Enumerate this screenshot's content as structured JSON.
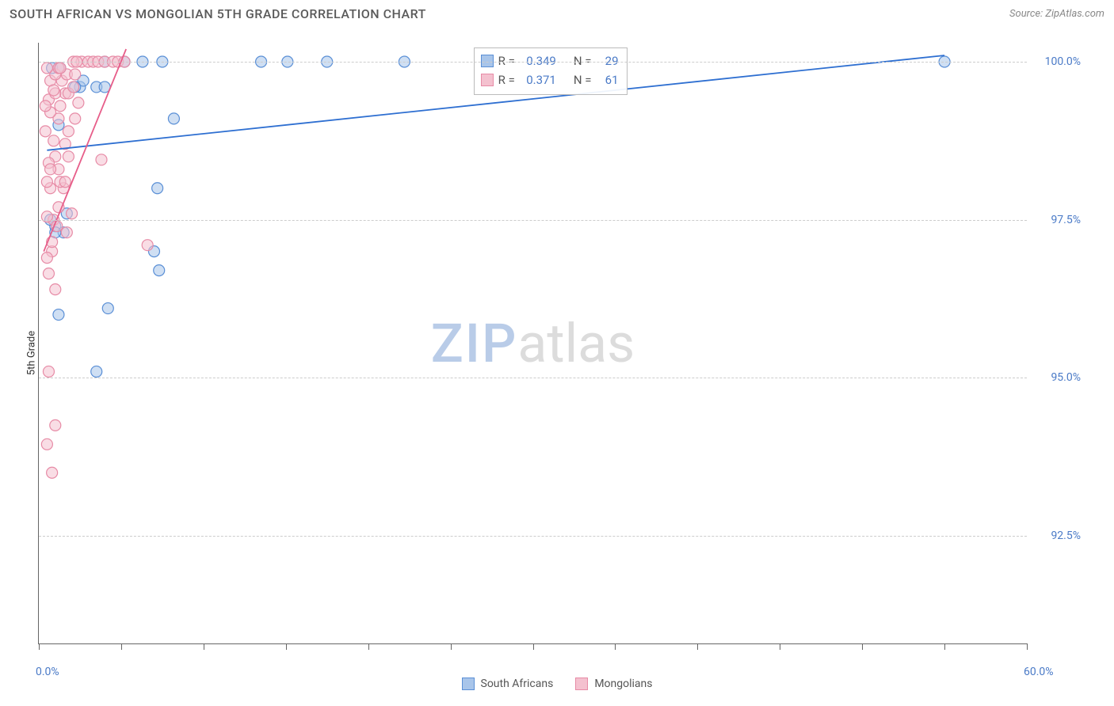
{
  "title": "SOUTH AFRICAN VS MONGOLIAN 5TH GRADE CORRELATION CHART",
  "source": "Source: ZipAtlas.com",
  "watermark_zip": "ZIP",
  "watermark_atlas": "atlas",
  "ylabel": "5th Grade",
  "chart": {
    "type": "scatter",
    "background_color": "#ffffff",
    "grid_color": "#cccccc",
    "axis_color": "#666666",
    "xlim": [
      0.0,
      60.0
    ],
    "ylim": [
      90.8,
      100.3
    ],
    "xtick_marks": [
      0,
      5,
      10,
      15,
      20,
      25,
      30,
      35,
      40,
      45,
      50,
      55,
      60
    ],
    "xtick_labels": [
      {
        "pos": 0.0,
        "text": "0.0%"
      },
      {
        "pos": 60.0,
        "text": "60.0%"
      }
    ],
    "ytick_labels": [
      {
        "pos": 92.5,
        "text": "92.5%"
      },
      {
        "pos": 95.0,
        "text": "95.0%"
      },
      {
        "pos": 97.5,
        "text": "97.5%"
      },
      {
        "pos": 100.0,
        "text": "100.0%"
      }
    ],
    "grid_y": [
      92.5,
      95.0,
      97.5,
      100.0
    ],
    "marker_radius": 7,
    "marker_opacity": 0.55,
    "line_width": 1.8,
    "series": [
      {
        "name": "South Africans",
        "color_stroke": "#5a8fd6",
        "color_fill": "#a8c5ea",
        "line_color": "#2e6fd1",
        "R": "0.349",
        "N": "29",
        "trend": {
          "x1": 0.5,
          "y1": 98.6,
          "x2": 55.0,
          "y2": 100.1
        },
        "points": [
          [
            1.0,
            97.4
          ],
          [
            1.5,
            97.3
          ],
          [
            1.2,
            96.0
          ],
          [
            3.5,
            95.1
          ],
          [
            7.2,
            98.0
          ],
          [
            7.5,
            100.0
          ],
          [
            13.5,
            100.0
          ],
          [
            15.1,
            100.0
          ],
          [
            17.5,
            100.0
          ],
          [
            22.2,
            100.0
          ],
          [
            4.0,
            100.0
          ],
          [
            6.3,
            100.0
          ],
          [
            5.2,
            100.0
          ],
          [
            2.5,
            99.6
          ],
          [
            2.7,
            99.7
          ],
          [
            0.8,
            99.9
          ],
          [
            1.3,
            99.9
          ],
          [
            7.3,
            96.7
          ],
          [
            7.0,
            97.0
          ],
          [
            3.5,
            99.6
          ],
          [
            1.2,
            99.0
          ],
          [
            1.0,
            97.3
          ],
          [
            4.2,
            96.1
          ],
          [
            0.7,
            97.5
          ],
          [
            1.7,
            97.6
          ],
          [
            2.2,
            99.6
          ],
          [
            4.0,
            99.6
          ],
          [
            8.2,
            99.1
          ],
          [
            55.0,
            100.0
          ]
        ]
      },
      {
        "name": "Mongolians",
        "color_stroke": "#e78ba6",
        "color_fill": "#f4c1cf",
        "line_color": "#e75d89",
        "R": "0.371",
        "N": "61",
        "trend": {
          "x1": 0.3,
          "y1": 97.0,
          "x2": 5.3,
          "y2": 100.2
        },
        "points": [
          [
            0.5,
            93.95
          ],
          [
            0.8,
            93.5
          ],
          [
            1.5,
            98.0
          ],
          [
            0.6,
            95.1
          ],
          [
            1.0,
            94.25
          ],
          [
            0.8,
            97.0
          ],
          [
            0.9,
            97.5
          ],
          [
            1.2,
            97.7
          ],
          [
            0.7,
            98.0
          ],
          [
            1.2,
            98.3
          ],
          [
            0.5,
            98.1
          ],
          [
            1.0,
            98.5
          ],
          [
            1.8,
            98.5
          ],
          [
            1.6,
            98.7
          ],
          [
            1.8,
            98.9
          ],
          [
            1.2,
            99.1
          ],
          [
            0.7,
            99.2
          ],
          [
            1.3,
            99.3
          ],
          [
            0.6,
            99.4
          ],
          [
            1.6,
            99.5
          ],
          [
            1.8,
            99.5
          ],
          [
            1.0,
            99.5
          ],
          [
            2.1,
            99.6
          ],
          [
            0.7,
            99.7
          ],
          [
            1.4,
            99.7
          ],
          [
            1.7,
            99.8
          ],
          [
            1.0,
            99.8
          ],
          [
            2.2,
            99.8
          ],
          [
            0.5,
            99.9
          ],
          [
            1.2,
            99.9
          ],
          [
            1.3,
            99.9
          ],
          [
            2.6,
            100.0
          ],
          [
            3.0,
            100.0
          ],
          [
            3.3,
            100.0
          ],
          [
            3.6,
            100.0
          ],
          [
            4.0,
            100.0
          ],
          [
            4.5,
            100.0
          ],
          [
            4.8,
            100.0
          ],
          [
            5.2,
            100.0
          ],
          [
            2.1,
            100.0
          ],
          [
            0.6,
            96.65
          ],
          [
            1.0,
            96.4
          ],
          [
            0.8,
            97.15
          ],
          [
            3.8,
            98.45
          ],
          [
            6.6,
            97.1
          ],
          [
            0.9,
            99.55
          ],
          [
            2.2,
            99.1
          ],
          [
            2.4,
            99.35
          ],
          [
            0.5,
            97.55
          ],
          [
            0.6,
            98.4
          ],
          [
            0.9,
            98.75
          ],
          [
            2.3,
            100.0
          ],
          [
            1.1,
            97.4
          ],
          [
            1.3,
            98.1
          ],
          [
            0.7,
            98.3
          ],
          [
            1.6,
            98.1
          ],
          [
            1.7,
            97.3
          ],
          [
            0.5,
            96.9
          ],
          [
            2.0,
            97.6
          ],
          [
            0.4,
            99.3
          ],
          [
            0.4,
            98.9
          ]
        ]
      }
    ]
  },
  "stats_box": {
    "rows": [
      {
        "swatch_stroke": "#5a8fd6",
        "swatch_fill": "#a8c5ea",
        "r_label": "R =",
        "r_val": "0.349",
        "n_label": "N =",
        "n_val": "29"
      },
      {
        "swatch_stroke": "#e78ba6",
        "swatch_fill": "#f4c1cf",
        "r_label": "R =",
        "r_val": "0.371",
        "n_label": "N =",
        "n_val": "61"
      }
    ]
  },
  "bottom_legend": [
    {
      "swatch_stroke": "#5a8fd6",
      "swatch_fill": "#a8c5ea",
      "label": "South Africans"
    },
    {
      "swatch_stroke": "#e78ba6",
      "swatch_fill": "#f4c1cf",
      "label": "Mongolians"
    }
  ]
}
